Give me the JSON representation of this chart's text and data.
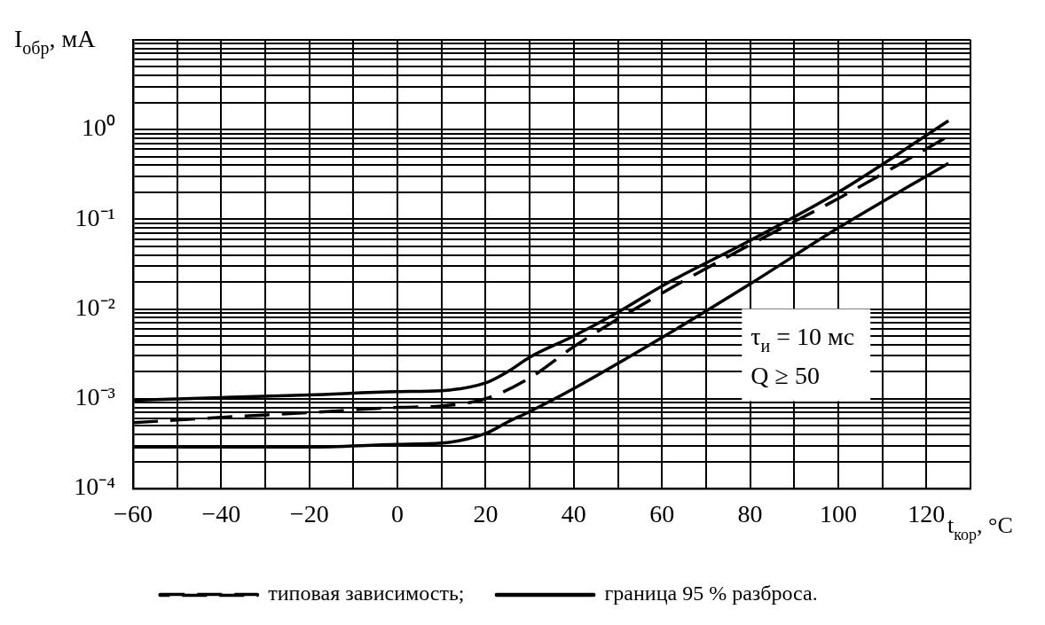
{
  "chart_data": {
    "type": "line",
    "xlabel": "t$_{кор}$, °C",
    "ylabel": "I$_{обр}$, мА",
    "annotations": [
      "τ$_{и}$ = 10 мс",
      "Q ≥ 50"
    ],
    "xlim": [
      -60,
      130
    ],
    "xticks": [
      {
        "value": -60,
        "label": "−60"
      },
      {
        "value": -50,
        "label": null
      },
      {
        "value": -40,
        "label": "−40"
      },
      {
        "value": -30,
        "label": null
      },
      {
        "value": -20,
        "label": "−20"
      },
      {
        "value": -10,
        "label": null
      },
      0,
      {
        "value": 10,
        "label": null
      },
      20,
      {
        "value": 30,
        "label": null
      },
      40,
      {
        "value": 50,
        "label": null
      },
      60,
      {
        "value": 70,
        "label": null
      },
      80,
      {
        "value": 90,
        "label": null
      },
      100,
      {
        "value": 110,
        "label": null
      },
      120,
      {
        "value": 130,
        "label": null
      }
    ],
    "ylim": [
      0.0001,
      10
    ],
    "yticks": [
      {
        "value": 0.0001,
        "label": "10⁻⁴"
      },
      {
        "value": 0.0002,
        "label": null
      },
      {
        "value": 0.0003,
        "label": null
      },
      {
        "value": 0.0004,
        "label": null
      },
      {
        "value": 0.0005,
        "label": null
      },
      {
        "value": 0.0006,
        "label": null
      },
      {
        "value": 0.0007,
        "label": null
      },
      {
        "value": 0.0008,
        "label": null
      },
      {
        "value": 0.0009,
        "label": null
      },
      {
        "value": 0.001,
        "label": "10⁻³"
      },
      {
        "value": 0.002,
        "label": null
      },
      {
        "value": 0.003,
        "label": null
      },
      {
        "value": 0.004,
        "label": null
      },
      {
        "value": 0.005,
        "label": null
      },
      {
        "value": 0.006,
        "label": null
      },
      {
        "value": 0.007,
        "label": null
      },
      {
        "value": 0.008,
        "label": null
      },
      {
        "value": 0.009,
        "label": null
      },
      {
        "value": 0.01,
        "label": "10⁻²"
      },
      {
        "value": 0.02,
        "label": null
      },
      {
        "value": 0.03,
        "label": null
      },
      {
        "value": 0.04,
        "label": null
      },
      {
        "value": 0.05,
        "label": null
      },
      {
        "value": 0.06,
        "label": null
      },
      {
        "value": 0.07,
        "label": null
      },
      {
        "value": 0.08,
        "label": null
      },
      {
        "value": 0.09,
        "label": null
      },
      {
        "value": 0.1,
        "label": "10⁻¹"
      },
      {
        "value": 0.2,
        "label": null
      },
      {
        "value": 0.3,
        "label": null
      },
      {
        "value": 0.4,
        "label": null
      },
      {
        "value": 0.5,
        "label": null
      },
      {
        "value": 0.6,
        "label": null
      },
      {
        "value": 0.7,
        "label": null
      },
      {
        "value": 0.8,
        "label": null
      },
      {
        "value": 0.9,
        "label": null
      },
      {
        "value": 1,
        "label": "10⁰"
      },
      {
        "value": 2,
        "label": null
      },
      {
        "value": 3,
        "label": null
      },
      {
        "value": 4,
        "label": null
      },
      {
        "value": 5,
        "label": null
      },
      {
        "value": 6,
        "label": null
      },
      {
        "value": 7,
        "label": null
      },
      {
        "value": 8,
        "label": null
      },
      {
        "value": 9,
        "label": null
      },
      {
        "value": 10,
        "label": null
      }
    ],
    "log": "y",
    "grid": true,
    "legend": "bottom",
    "marker": "none",
    "series": [
      {
        "name": "типовая зависимость;",
        "color": "#000000",
        "line_style": "dashed",
        "x": [
          -60,
          -40,
          -20,
          0,
          10,
          20,
          30,
          40,
          60,
          80,
          100,
          125
        ],
        "values": [
          0.00054,
          0.00062,
          0.0007,
          0.0008,
          0.00083,
          0.001,
          0.0017,
          0.0038,
          0.015,
          0.052,
          0.17,
          0.84
        ]
      },
      {
        "name": "граница 95 % разброса.",
        "color": "#000000",
        "line_style": "solid",
        "x": [
          -60,
          -40,
          -20,
          0,
          10,
          20,
          25,
          30,
          40,
          50,
          60,
          80,
          100,
          125
        ],
        "values": [
          0.00096,
          0.00103,
          0.0011,
          0.0012,
          0.00123,
          0.0015,
          0.002,
          0.0029,
          0.005,
          0.0092,
          0.018,
          0.058,
          0.2,
          1.25
        ]
      },
      {
        "color": "#000000",
        "line_style": "solid",
        "x": [
          -60,
          -40,
          -20,
          0,
          10,
          20,
          25,
          30,
          40,
          60,
          80,
          100,
          125
        ],
        "values": [
          0.00029,
          0.00029,
          0.00029,
          0.00031,
          0.00032,
          0.00041,
          0.00055,
          0.00072,
          0.0013,
          0.0048,
          0.019,
          0.08,
          0.42
        ]
      }
    ]
  }
}
